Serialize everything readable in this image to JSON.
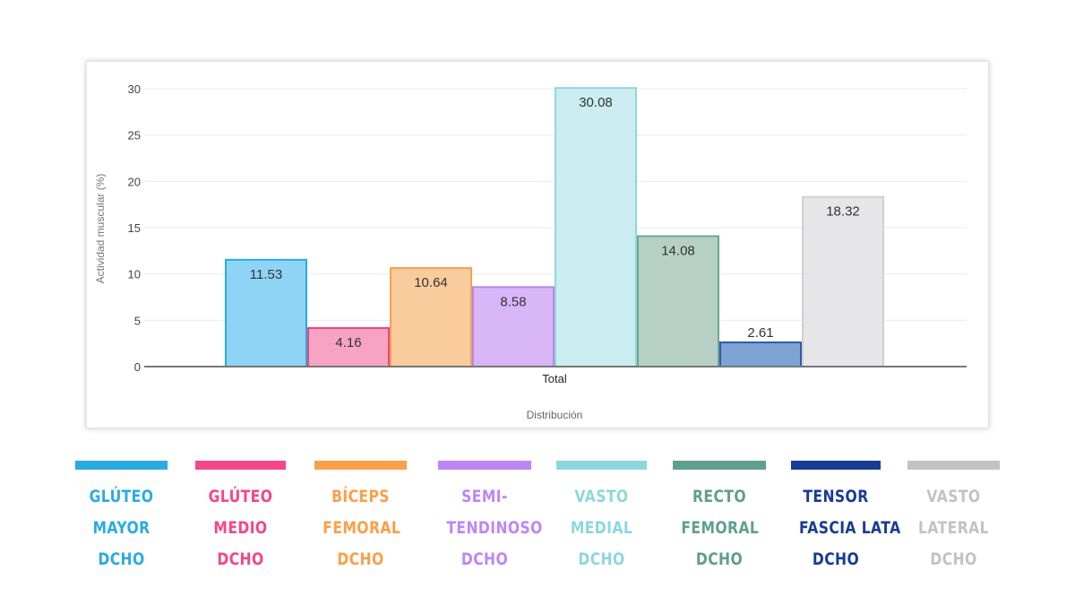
{
  "chart_data": {
    "type": "bar",
    "categories": [
      "Total"
    ],
    "xlabel": "Distribución",
    "ylabel": "Actividad muscular (%)",
    "ylim": [
      0,
      30
    ],
    "yticks": [
      0,
      5,
      10,
      15,
      20,
      25,
      30
    ],
    "gridlines": true,
    "legend_position": "bottom",
    "series": [
      {
        "name": "GLÚTEO MAYOR DCHO",
        "value": 11.53,
        "label": "11.53",
        "color": "#29ABE2",
        "fill": "#8DD4F5",
        "stroke": "#29ABE2",
        "legend_lines": [
          "GLÚTEO",
          "MAYOR",
          "DCHO"
        ]
      },
      {
        "name": "GLÚTEO MEDIO DCHO",
        "value": 4.16,
        "label": "4.16",
        "color": "#F4468A",
        "fill": "#F7A3C4",
        "stroke": "#E8457F",
        "legend_lines": [
          "GLÚTEO",
          "MEDIO",
          "DCHO"
        ]
      },
      {
        "name": "BÍCEPS FEMORAL DCHO",
        "value": 10.64,
        "label": "10.64",
        "color": "#F9A04A",
        "fill": "#FACB9C",
        "stroke": "#F2A252",
        "legend_lines": [
          "BÍCEPS",
          "FEMORAL",
          "DCHO"
        ]
      },
      {
        "name": "SEMI-TENDINOSO DCHO",
        "value": 8.58,
        "label": "8.58",
        "color": "#C085F4",
        "fill": "#D8B6F8",
        "stroke": "#B985E8",
        "legend_lines": [
          "SEMI-",
          "TENDINOSO",
          "DCHO"
        ]
      },
      {
        "name": "VASTO MEDIAL DCHO",
        "value": 30.08,
        "label": "30.08",
        "color": "#8BD7DF",
        "fill": "#CBEDF0",
        "stroke": "#8FD7DE",
        "legend_lines": [
          "VASTO",
          "MEDIAL",
          "DCHO"
        ]
      },
      {
        "name": "RECTO FEMORAL DCHO",
        "value": 14.08,
        "label": "14.08",
        "color": "#5F9F8D",
        "fill": "#B6D0C6",
        "stroke": "#6FA595",
        "legend_lines": [
          "RECTO",
          "FEMORAL",
          "DCHO"
        ]
      },
      {
        "name": "TENSOR FASCIA LATA DCHO",
        "value": 2.61,
        "label": "2.61",
        "color": "#183C94",
        "fill": "#7DA4D4",
        "stroke": "#2E5AA8",
        "legend_lines": [
          "TENSOR",
          "FASCIA LATA",
          "DCHO"
        ]
      },
      {
        "name": "VASTO LATERAL DCHO",
        "value": 18.32,
        "label": "18.32",
        "color": "#C2C2C4",
        "fill": "#E6E6E8",
        "stroke": "#D0D0D2",
        "legend_lines": [
          "VASTO",
          "LATERAL",
          "DCHO"
        ]
      }
    ]
  }
}
